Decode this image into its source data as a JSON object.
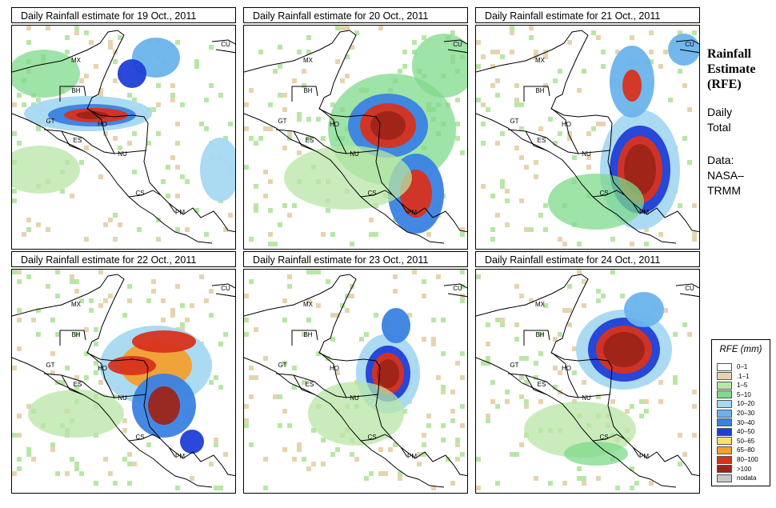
{
  "panels": [
    {
      "title": "Daily Rainfall estimate for  19 Oct., 2011"
    },
    {
      "title": "Daily Rainfall estimate for  20 Oct., 2011"
    },
    {
      "title": "Daily Rainfall estimate for  21 Oct., 2011"
    },
    {
      "title": "Daily Rainfall estimate for  22 Oct., 2011"
    },
    {
      "title": "Daily Rainfall estimate for  23 Oct., 2011"
    },
    {
      "title": "Daily Rainfall estimate for  24 Oct., 2011"
    }
  ],
  "country_labels": [
    "MX",
    "BH",
    "GT",
    "HO",
    "ES",
    "NU",
    "CS",
    "PM",
    "CU"
  ],
  "sidebar": {
    "title_line1": "Rainfall",
    "title_line2": "Estimate",
    "title_line3": "(RFE)",
    "daily_line1": "Daily",
    "daily_line2": "Total",
    "data_line1": "Data:",
    "data_line2": "NASA–",
    "data_line3": "TRMM"
  },
  "legend": {
    "title": "RFE (mm)",
    "items": [
      {
        "label": "0–1",
        "color": "#ffffff"
      },
      {
        "label": ".1–1",
        "color": "#e6d4b0"
      },
      {
        "label": "1–5",
        "color": "#b8e6a6"
      },
      {
        "label": "5–10",
        "color": "#7ed98a"
      },
      {
        "label": "10–20",
        "color": "#a6d8f2"
      },
      {
        "label": "20–30",
        "color": "#6ab4ec"
      },
      {
        "label": "30–40",
        "color": "#3a82e2"
      },
      {
        "label": "40–50",
        "color": "#1f3fd6"
      },
      {
        "label": "50–65",
        "color": "#f7e070"
      },
      {
        "label": "65–80",
        "color": "#f2a02e"
      },
      {
        "label": "80–100",
        "color": "#d8311e"
      },
      {
        "label": ">100",
        "color": "#9e2418"
      },
      {
        "label": "nodata",
        "color": "#c8c8c8"
      }
    ]
  }
}
